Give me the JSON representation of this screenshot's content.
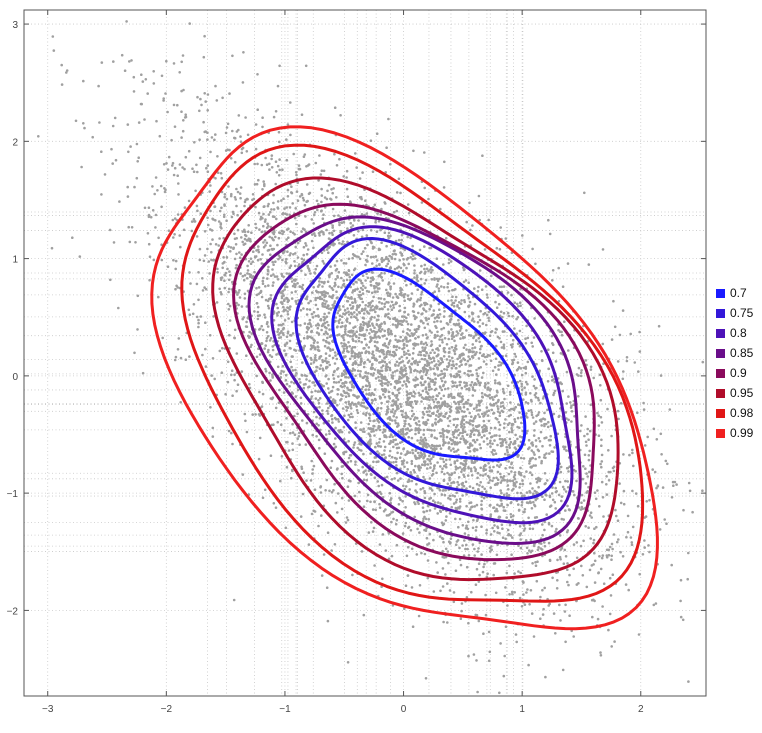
{
  "chart_data": {
    "type": "scatter",
    "title": "",
    "xlabel": "",
    "ylabel": "",
    "xlim": [
      -3.2,
      2.55
    ],
    "ylim": [
      -2.73,
      3.12
    ],
    "grid": true,
    "x_ticks": [
      -3,
      -2,
      -1,
      0,
      1,
      2
    ],
    "y_ticks": [
      -2,
      -1,
      0,
      1,
      2,
      3
    ],
    "scatter": {
      "color": "#a0a0a0",
      "description_points": 6000,
      "mean": [
        0.0,
        0.0
      ],
      "covariance": [
        [
          0.85,
          -0.55
        ],
        [
          -0.55,
          0.85
        ]
      ]
    },
    "series": [
      {
        "name": "0.7",
        "color": "#1a1aff",
        "contour": {
          "center": [
            0.2,
            0.05
          ],
          "a": 1.0,
          "b": 0.55,
          "angle_deg": -45
        }
      },
      {
        "name": "0.75",
        "color": "#3318d9",
        "contour": {
          "center": [
            0.2,
            0.02
          ],
          "a": 1.33,
          "b": 0.78,
          "angle_deg": -45
        }
      },
      {
        "name": "0.8",
        "color": "#4d12b8",
        "contour": {
          "center": [
            0.2,
            0.0
          ],
          "a": 1.5,
          "b": 0.92,
          "angle_deg": -45
        }
      },
      {
        "name": "0.85",
        "color": "#6a0e8a",
        "contour": {
          "center": [
            0.18,
            -0.02
          ],
          "a": 1.67,
          "b": 1.03,
          "angle_deg": -45
        }
      },
      {
        "name": "0.9",
        "color": "#8a0a5c",
        "contour": {
          "center": [
            0.16,
            -0.05
          ],
          "a": 1.82,
          "b": 1.13,
          "angle_deg": -45
        }
      },
      {
        "name": "0.95",
        "color": "#b00c2a",
        "contour": {
          "center": [
            0.12,
            -0.08
          ],
          "a": 2.05,
          "b": 1.27,
          "angle_deg": -45
        }
      },
      {
        "name": "0.98",
        "color": "#e01616",
        "contour": {
          "center": [
            0.05,
            -0.1
          ],
          "a": 2.35,
          "b": 1.42,
          "angle_deg": -45
        }
      },
      {
        "name": "0.99",
        "color": "#f02020",
        "contour": {
          "center": [
            0.0,
            -0.12
          ],
          "a": 2.55,
          "b": 1.55,
          "angle_deg": -45
        }
      }
    ],
    "legend": {
      "position": "right",
      "entries": [
        {
          "label": "0.7",
          "color": "#1a1aff"
        },
        {
          "label": "0.75",
          "color": "#3318d9"
        },
        {
          "label": "0.8",
          "color": "#4d12b8"
        },
        {
          "label": "0.85",
          "color": "#6a0e8a"
        },
        {
          "label": "0.9",
          "color": "#8a0a5c"
        },
        {
          "label": "0.95",
          "color": "#b00c2a"
        },
        {
          "label": "0.98",
          "color": "#e01616"
        },
        {
          "label": "0.99",
          "color": "#f02020"
        }
      ]
    }
  }
}
